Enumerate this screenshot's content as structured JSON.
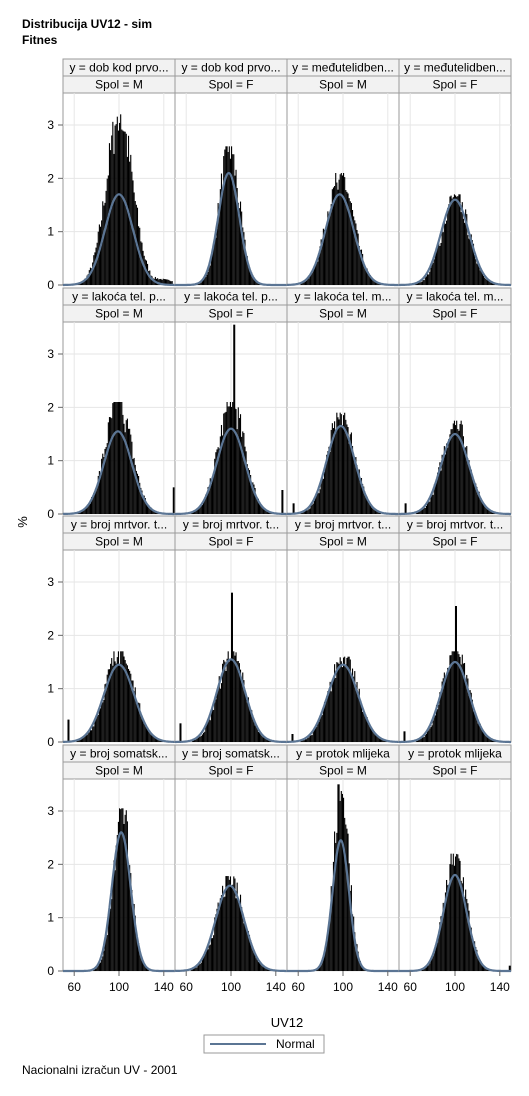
{
  "titles": [
    "Distribucija UV12 - sim",
    "Fitnes"
  ],
  "footnote": "Nacionalni izračun UV - 2001",
  "chart_data": {
    "type": "histogram-panel",
    "xlabel": "UV12",
    "ylabel": "%",
    "x_ticks": [
      60,
      100,
      140
    ],
    "y_ticks": [
      0,
      1,
      2,
      3
    ],
    "xlim": [
      50,
      150
    ],
    "ylim": [
      0,
      3.6
    ],
    "legend": {
      "entries": [
        "Normal"
      ],
      "placement": "bottom-center"
    },
    "colors": {
      "bar": "#000000",
      "normal_curve": "#5b7594",
      "header_bg": "#f2f2f2",
      "grid": "#e6e6e6",
      "frame": "#9a9a9a"
    },
    "panels": [
      {
        "row": 0,
        "col": 0,
        "trait": "y = dob kod prvo...",
        "spol": "Spol = M",
        "peak": 3.2,
        "normal_peak": 1.7,
        "sd": 12,
        "center": 100,
        "skew": 0.35,
        "spikes": []
      },
      {
        "row": 0,
        "col": 1,
        "trait": "y = dob kod prvo...",
        "spol": "Spol = F",
        "peak": 2.6,
        "normal_peak": 2.1,
        "sd": 9,
        "center": 98,
        "skew": 0,
        "spikes": []
      },
      {
        "row": 0,
        "col": 2,
        "trait": "y = međutelidben...",
        "spol": "Spol = M",
        "peak": 2.1,
        "normal_peak": 1.7,
        "sd": 12,
        "center": 97,
        "skew": 0,
        "spikes": []
      },
      {
        "row": 0,
        "col": 3,
        "trait": "y = međutelidben...",
        "spol": "Spol = F",
        "peak": 1.7,
        "normal_peak": 1.6,
        "sd": 12,
        "center": 100,
        "skew": 0,
        "spikes": []
      },
      {
        "row": 1,
        "col": 0,
        "trait": "y = lakoća tel. p...",
        "spol": "Spol = M",
        "peak": 2.1,
        "normal_peak": 1.55,
        "sd": 12,
        "center": 99,
        "skew": 0,
        "spikes": [
          {
            "x": 148,
            "h": 0.5
          }
        ]
      },
      {
        "row": 1,
        "col": 1,
        "trait": "y = lakoća tel. p...",
        "spol": "Spol = F",
        "peak": 2.1,
        "normal_peak": 1.6,
        "sd": 12,
        "center": 100,
        "skew": 0,
        "spikes": [
          {
            "x": 102,
            "h": 3.55
          },
          {
            "x": 145,
            "h": 0.45
          }
        ]
      },
      {
        "row": 1,
        "col": 2,
        "trait": "y = lakoća tel. m...",
        "spol": "Spol = M",
        "peak": 1.9,
        "normal_peak": 1.65,
        "sd": 12,
        "center": 98,
        "skew": 0,
        "spikes": [
          {
            "x": 55,
            "h": 0.2
          }
        ]
      },
      {
        "row": 1,
        "col": 3,
        "trait": "y = lakoća tel. m...",
        "spol": "Spol = F",
        "peak": 1.75,
        "normal_peak": 1.5,
        "sd": 12,
        "center": 100,
        "skew": 0,
        "spikes": [
          {
            "x": 55,
            "h": 0.2
          }
        ]
      },
      {
        "row": 2,
        "col": 0,
        "trait": "y = broj mrtvor. t...",
        "spol": "Spol = M",
        "peak": 1.7,
        "normal_peak": 1.45,
        "sd": 13,
        "center": 100,
        "skew": 0,
        "spikes": [
          {
            "x": 54,
            "h": 0.42
          }
        ]
      },
      {
        "row": 2,
        "col": 1,
        "trait": "y = broj mrtvor. t...",
        "spol": "Spol = F",
        "peak": 1.7,
        "normal_peak": 1.55,
        "sd": 12,
        "center": 100,
        "skew": 0,
        "spikes": [
          {
            "x": 100,
            "h": 2.8
          },
          {
            "x": 54,
            "h": 0.35
          }
        ]
      },
      {
        "row": 2,
        "col": 2,
        "trait": "y = broj mrtvor. t...",
        "spol": "Spol = M",
        "peak": 1.6,
        "normal_peak": 1.45,
        "sd": 13,
        "center": 100,
        "skew": 0,
        "spikes": [
          {
            "x": 54,
            "h": 0.15
          }
        ]
      },
      {
        "row": 2,
        "col": 3,
        "trait": "y = broj mrtvor. t...",
        "spol": "Spol = F",
        "peak": 1.7,
        "normal_peak": 1.5,
        "sd": 12,
        "center": 100,
        "skew": 0,
        "spikes": [
          {
            "x": 100,
            "h": 2.55
          },
          {
            "x": 54,
            "h": 0.2
          }
        ]
      },
      {
        "row": 3,
        "col": 0,
        "trait": "y = broj somatsk...",
        "spol": "Spol = M",
        "peak": 3.05,
        "normal_peak": 2.6,
        "sd": 8,
        "center": 102,
        "skew": 0,
        "spikes": []
      },
      {
        "row": 3,
        "col": 1,
        "trait": "y = broj somatsk...",
        "spol": "Spol = F",
        "peak": 1.78,
        "normal_peak": 1.6,
        "sd": 12,
        "center": 99,
        "skew": 0,
        "spikes": []
      },
      {
        "row": 3,
        "col": 2,
        "trait": "y = protok mlijeka",
        "spol": "Spol = M",
        "peak": 3.5,
        "normal_peak": 2.45,
        "sd": 7,
        "center": 98,
        "skew": 0,
        "spikes": []
      },
      {
        "row": 3,
        "col": 3,
        "trait": "y = protok mlijeka",
        "spol": "Spol = F",
        "peak": 2.2,
        "normal_peak": 1.8,
        "sd": 10,
        "center": 100,
        "skew": 0,
        "spikes": [
          {
            "x": 148,
            "h": 0.1
          }
        ]
      }
    ]
  }
}
